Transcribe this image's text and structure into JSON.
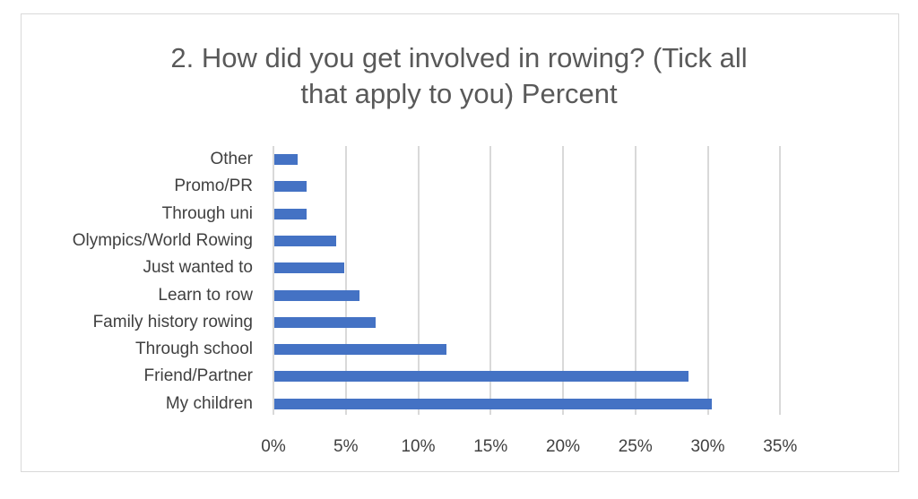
{
  "title_line1": "2. How did you get involved in rowing? (Tick all",
  "title_line2": "that apply to you) Percent",
  "chart_data": {
    "type": "bar",
    "orientation": "horizontal",
    "title": "2. How did you get involved in rowing? (Tick all that apply to you) Percent",
    "categories": [
      "Other",
      "Promo/PR",
      "Through uni",
      "Olympics/World Rowing",
      "Just wanted to",
      "Learn to row",
      "Family history rowing",
      "Through school",
      "Friend/Partner",
      "My children"
    ],
    "values": [
      1.6,
      2.2,
      2.2,
      4.3,
      4.8,
      5.9,
      7.0,
      11.9,
      28.6,
      30.2
    ],
    "xlim": [
      0,
      35
    ],
    "xticks": [
      "0%",
      "5%",
      "10%",
      "15%",
      "20%",
      "25%",
      "30%",
      "35%"
    ],
    "grid": true,
    "legend": false,
    "color": "#4472c4"
  }
}
